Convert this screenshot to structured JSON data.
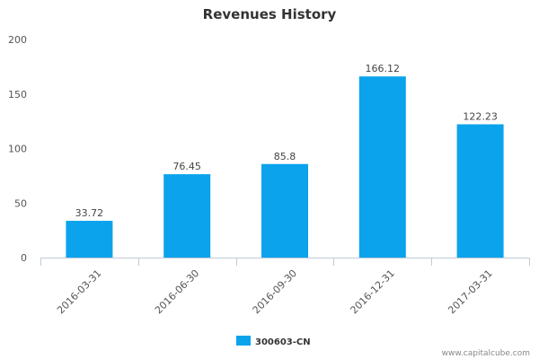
{
  "chart_data": {
    "type": "bar",
    "title": "Revenues History",
    "categories": [
      "2016-03-31",
      "2016-06-30",
      "2016-09-30",
      "2016-12-31",
      "2017-03-31"
    ],
    "series": [
      {
        "name": "300603-CN",
        "values": [
          33.72,
          76.45,
          85.8,
          166.12,
          122.23
        ],
        "labels": [
          "33.72",
          "76.45",
          "85.8",
          "166.12",
          "122.23"
        ],
        "color": "#0ba3ec"
      }
    ],
    "ylim": [
      0,
      200
    ],
    "yticks": [
      "0",
      "50",
      "100",
      "150",
      "200"
    ],
    "ytick_values": [
      0,
      50,
      100,
      150,
      200
    ],
    "xlabel": "",
    "ylabel": "",
    "grid": false,
    "legend_position": "bottom-center",
    "axis_color": "#c0cbd8"
  },
  "watermark": "www.capitalcube.com"
}
